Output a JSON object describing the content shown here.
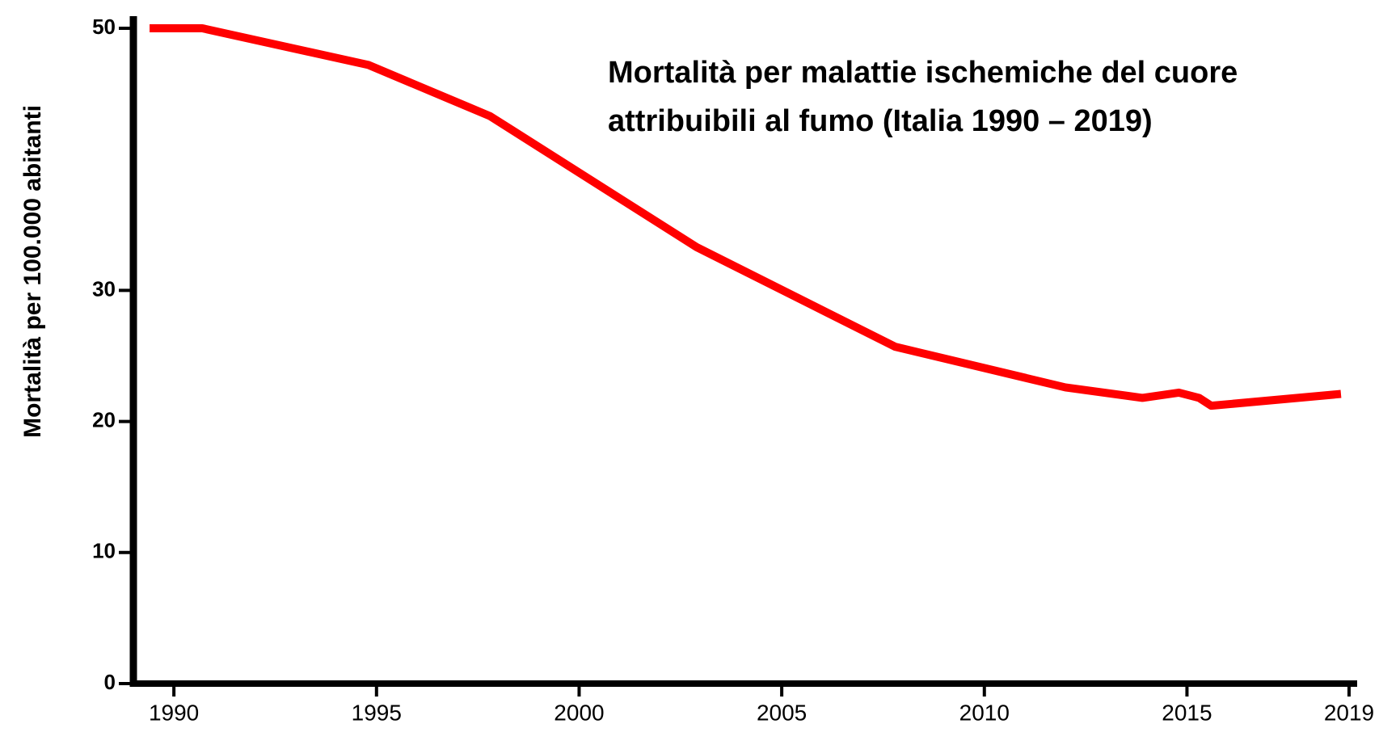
{
  "chart_data": {
    "type": "line",
    "title": [
      "Mortalità per malattie ischemiche del cuore",
      "attribuibili al fumo (Italia 1990 – 2019)"
    ],
    "y_label": "Mortalità per 100.000 abitanti",
    "x": [
      1989.4,
      1990.7,
      1994.8,
      1997.8,
      2002.9,
      2007.8,
      2012.0,
      2013.9,
      2014.8,
      2015.3,
      2015.6,
      2018.8
    ],
    "series": [
      {
        "color": "#ff0000",
        "values": [
          50,
          50,
          47.2,
          43.3,
          33.3,
          25.7,
          22.6,
          21.8,
          22.2,
          21.8,
          21.2,
          22.1
        ]
      }
    ],
    "xlim": [
      1989,
      2019.2
    ],
    "xticks": [
      1990,
      1995,
      2000,
      2005,
      2010,
      2015,
      2019
    ],
    "ylim": [
      0,
      50
    ],
    "yticks": [
      0,
      10,
      20,
      30,
      50
    ],
    "grid": false
  }
}
